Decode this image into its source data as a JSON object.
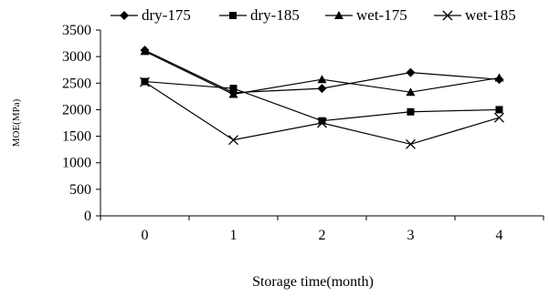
{
  "chart_data": {
    "type": "line",
    "title": "",
    "xlabel": "Storage time(month)",
    "ylabel": "MOE(MPa)",
    "categories": [
      "0",
      "1",
      "2",
      "3",
      "4"
    ],
    "ylim": [
      0,
      3500
    ],
    "yticks": [
      "0",
      "500",
      "1000",
      "1500",
      "2000",
      "2500",
      "3000",
      "3500"
    ],
    "grid": false,
    "legend_position": "top",
    "series": [
      {
        "name": "dry-175",
        "marker": "diamond",
        "values": [
          3120,
          2320,
          2400,
          2700,
          2570
        ]
      },
      {
        "name": "dry-185",
        "marker": "square",
        "values": [
          2530,
          2400,
          1790,
          1960,
          2000
        ]
      },
      {
        "name": "wet-175",
        "marker": "triangle",
        "values": [
          3100,
          2290,
          2570,
          2330,
          2600
        ]
      },
      {
        "name": "wet-185",
        "marker": "x",
        "values": [
          2520,
          1430,
          1750,
          1350,
          1850
        ]
      }
    ]
  }
}
